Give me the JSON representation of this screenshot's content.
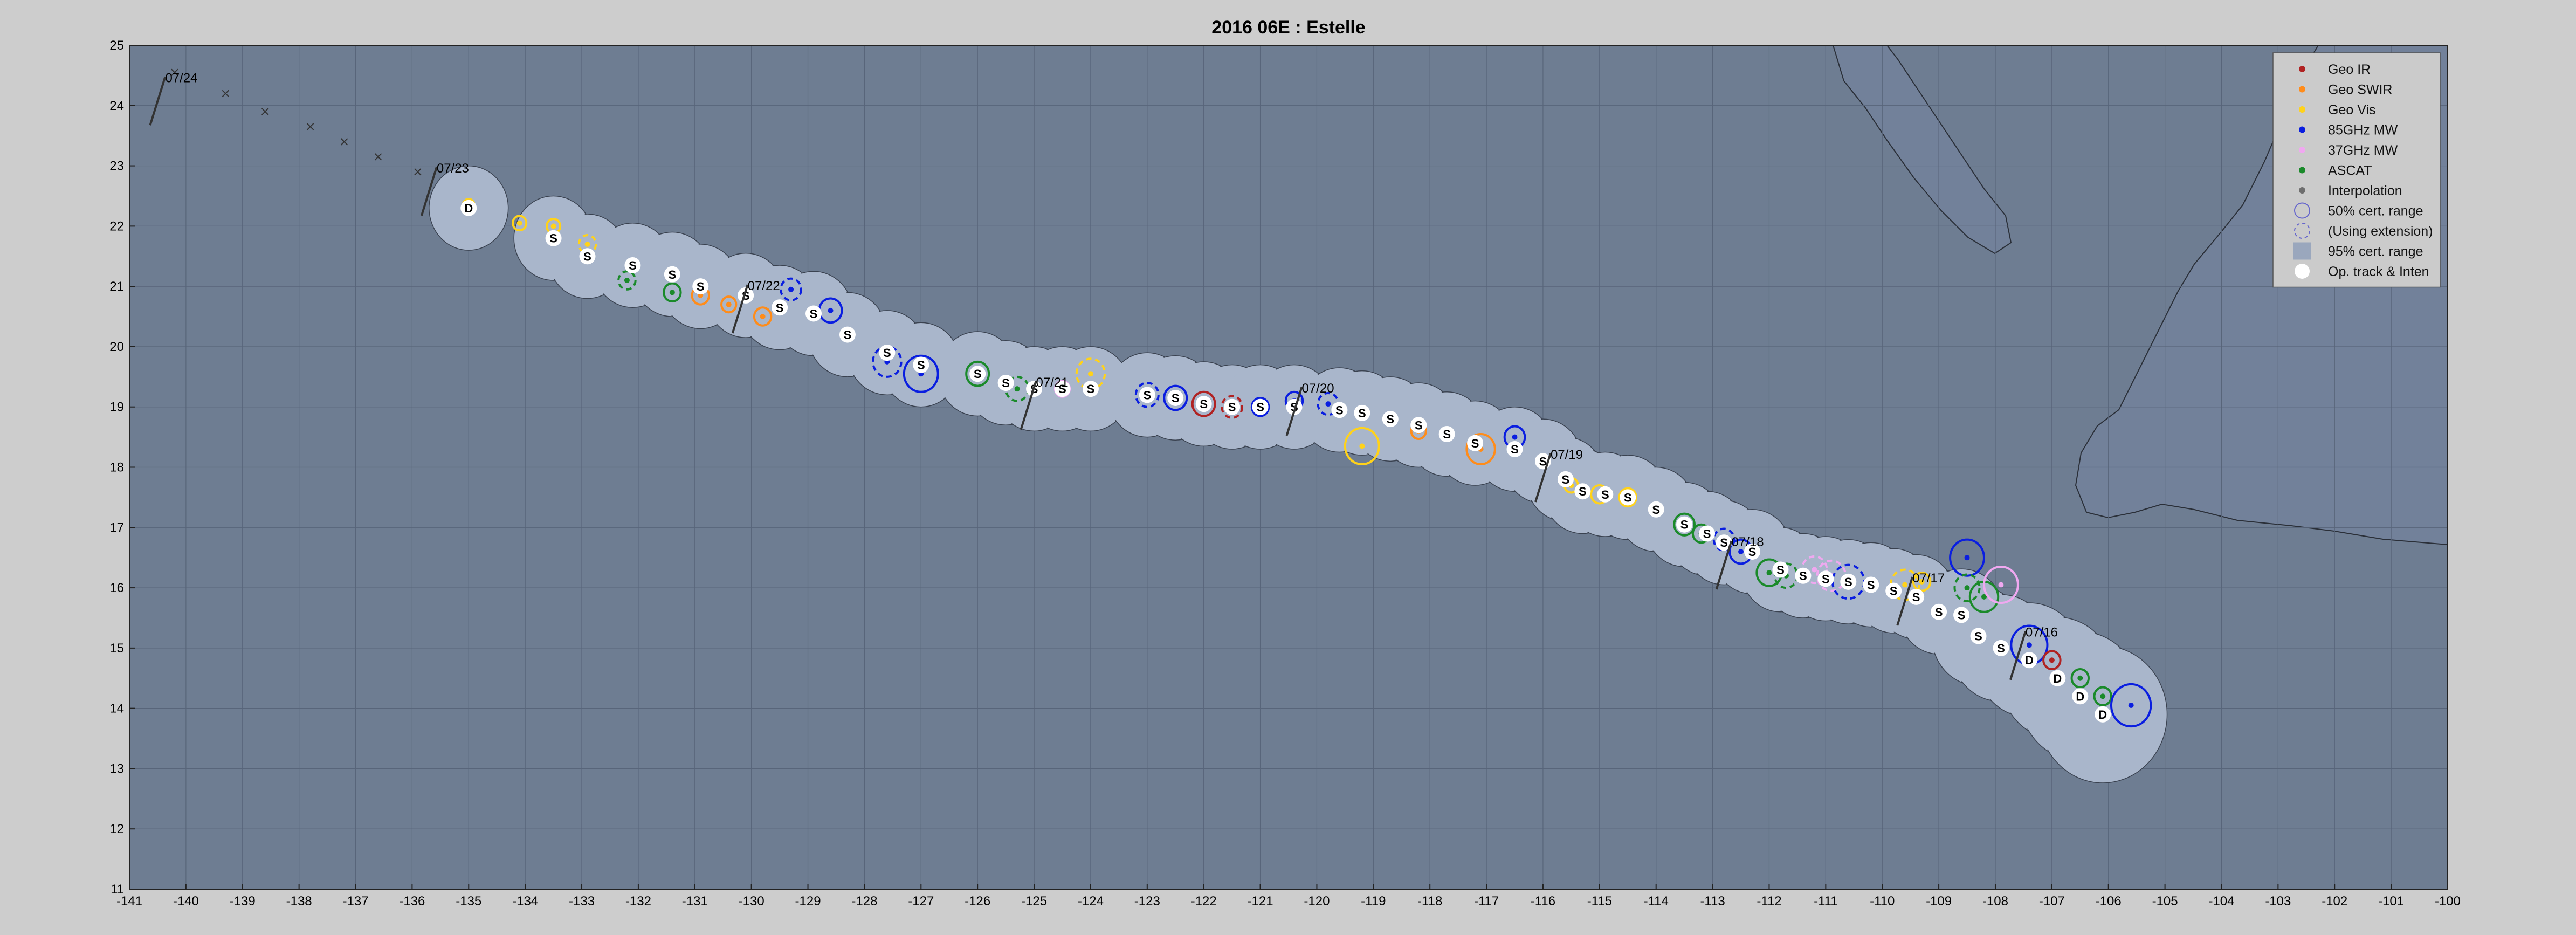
{
  "chart_data": {
    "type": "scatter",
    "title": "2016  06E :  Estelle",
    "xlim": [
      -141,
      -100
    ],
    "ylim": [
      11,
      25
    ],
    "xticks": [
      -141,
      -140,
      -139,
      -138,
      -137,
      -136,
      -135,
      -134,
      -133,
      -132,
      -131,
      -130,
      -129,
      -128,
      -127,
      -126,
      -125,
      -124,
      -123,
      -122,
      -121,
      -120,
      -119,
      -118,
      -117,
      -116,
      -115,
      -114,
      -113,
      -112,
      -111,
      -110,
      -109,
      -108,
      -107,
      -106,
      -105,
      -104,
      -103,
      -102,
      -101,
      -100
    ],
    "yticks": [
      11,
      12,
      13,
      14,
      15,
      16,
      17,
      18,
      19,
      20,
      21,
      22,
      23,
      24,
      25
    ],
    "grid": true,
    "legend_position": "top-right",
    "colors": {
      "figure_bg": "#cdcdcd",
      "ocean": "#6e7d92",
      "land": "#72819a",
      "envelope": "#a9b6cb",
      "grid": "#58657a",
      "coast": "#2a2f38",
      "geo_ir": "#b02222",
      "geo_swir": "#ff8c1a",
      "geo_vis": "#ffd21a",
      "mw85": "#0a1ee0",
      "mw37": "#f0a8f0",
      "ascat": "#1a8a2a",
      "interp": "#6e6e6e"
    },
    "legend": [
      {
        "label": "Geo IR",
        "kind": "dot",
        "color_key": "geo_ir"
      },
      {
        "label": "Geo SWIR",
        "kind": "dot",
        "color_key": "geo_swir"
      },
      {
        "label": "Geo Vis",
        "kind": "dot",
        "color_key": "geo_vis"
      },
      {
        "label": "85GHz MW",
        "kind": "dot",
        "color_key": "mw85"
      },
      {
        "label": "37GHz MW",
        "kind": "dot",
        "color_key": "mw37"
      },
      {
        "label": "ASCAT",
        "kind": "dot",
        "color_key": "ascat"
      },
      {
        "label": "Interpolation",
        "kind": "dot",
        "color_key": "interp"
      },
      {
        "label": "50% cert. range",
        "kind": "ring"
      },
      {
        "label": "(Using extension)",
        "kind": "dashed-ring"
      },
      {
        "label": "95% cert. range",
        "kind": "square"
      },
      {
        "label": "Op. track & Inten",
        "kind": "white-dot"
      }
    ],
    "date_labels": [
      {
        "text": "07/24",
        "x": -140.5,
        "y": 24.3
      },
      {
        "text": "07/23",
        "x": -135.7,
        "y": 22.8
      },
      {
        "text": "07/22",
        "x": -130.2,
        "y": 20.85
      },
      {
        "text": "07/21",
        "x": -125.1,
        "y": 19.25
      },
      {
        "text": "07/20",
        "x": -120.4,
        "y": 19.15
      },
      {
        "text": "07/19",
        "x": -116.0,
        "y": 18.05
      },
      {
        "text": "07/18",
        "x": -112.8,
        "y": 16.6
      },
      {
        "text": "07/17",
        "x": -109.6,
        "y": 16.0
      },
      {
        "text": "07/16",
        "x": -107.6,
        "y": 15.1
      }
    ],
    "op_track": [
      {
        "x": -135.0,
        "y": 22.3,
        "mark": "D"
      },
      {
        "x": -133.5,
        "y": 21.8,
        "mark": "S"
      },
      {
        "x": -132.9,
        "y": 21.5,
        "mark": "S"
      },
      {
        "x": -132.1,
        "y": 21.35,
        "mark": "S"
      },
      {
        "x": -131.4,
        "y": 21.2,
        "mark": "S"
      },
      {
        "x": -130.9,
        "y": 21.0,
        "mark": "S"
      },
      {
        "x": -130.1,
        "y": 20.85,
        "mark": "S"
      },
      {
        "x": -129.5,
        "y": 20.65,
        "mark": "S"
      },
      {
        "x": -128.9,
        "y": 20.55,
        "mark": "S"
      },
      {
        "x": -128.3,
        "y": 20.2,
        "mark": "S"
      },
      {
        "x": -127.6,
        "y": 19.9,
        "mark": "S"
      },
      {
        "x": -127.0,
        "y": 19.7,
        "mark": "S"
      },
      {
        "x": -126.0,
        "y": 19.55,
        "mark": "S"
      },
      {
        "x": -125.5,
        "y": 19.4,
        "mark": "S"
      },
      {
        "x": -125.0,
        "y": 19.3,
        "mark": "S"
      },
      {
        "x": -124.5,
        "y": 19.3,
        "mark": "S"
      },
      {
        "x": -124.0,
        "y": 19.3,
        "mark": "S"
      },
      {
        "x": -123.0,
        "y": 19.2,
        "mark": "S"
      },
      {
        "x": -122.5,
        "y": 19.15,
        "mark": "S"
      },
      {
        "x": -122.0,
        "y": 19.05,
        "mark": "S"
      },
      {
        "x": -121.5,
        "y": 19.0,
        "mark": "S"
      },
      {
        "x": -121.0,
        "y": 19.0,
        "mark": "S"
      },
      {
        "x": -120.4,
        "y": 19.0,
        "mark": "S"
      },
      {
        "x": -119.6,
        "y": 18.95,
        "mark": "S"
      },
      {
        "x": -119.2,
        "y": 18.9,
        "mark": "S"
      },
      {
        "x": -118.7,
        "y": 18.8,
        "mark": "S"
      },
      {
        "x": -118.2,
        "y": 18.7,
        "mark": "S"
      },
      {
        "x": -117.7,
        "y": 18.55,
        "mark": "S"
      },
      {
        "x": -117.2,
        "y": 18.4,
        "mark": "S"
      },
      {
        "x": -116.5,
        "y": 18.3,
        "mark": "S"
      },
      {
        "x": -116.0,
        "y": 18.1,
        "mark": "S"
      },
      {
        "x": -115.6,
        "y": 17.8,
        "mark": "S"
      },
      {
        "x": -115.3,
        "y": 17.6,
        "mark": "S"
      },
      {
        "x": -114.9,
        "y": 17.55,
        "mark": "S"
      },
      {
        "x": -114.5,
        "y": 17.5,
        "mark": "S"
      },
      {
        "x": -114.0,
        "y": 17.3,
        "mark": "S"
      },
      {
        "x": -113.5,
        "y": 17.05,
        "mark": "S"
      },
      {
        "x": -113.1,
        "y": 16.9,
        "mark": "S"
      },
      {
        "x": -112.8,
        "y": 16.75,
        "mark": "S"
      },
      {
        "x": -112.3,
        "y": 16.6,
        "mark": "S"
      },
      {
        "x": -111.8,
        "y": 16.3,
        "mark": "S"
      },
      {
        "x": -111.4,
        "y": 16.2,
        "mark": "S"
      },
      {
        "x": -111.0,
        "y": 16.15,
        "mark": "S"
      },
      {
        "x": -110.6,
        "y": 16.1,
        "mark": "S"
      },
      {
        "x": -110.2,
        "y": 16.05,
        "mark": "S"
      },
      {
        "x": -109.8,
        "y": 15.95,
        "mark": "S"
      },
      {
        "x": -109.4,
        "y": 15.85,
        "mark": "S"
      },
      {
        "x": -109.0,
        "y": 15.6,
        "mark": "S"
      },
      {
        "x": -108.6,
        "y": 15.55,
        "mark": "S"
      },
      {
        "x": -108.3,
        "y": 15.2,
        "mark": "S"
      },
      {
        "x": -107.9,
        "y": 15.0,
        "mark": "S"
      },
      {
        "x": -107.4,
        "y": 14.8,
        "mark": "D"
      },
      {
        "x": -106.9,
        "y": 14.5,
        "mark": "D"
      },
      {
        "x": -106.5,
        "y": 14.2,
        "mark": "D"
      },
      {
        "x": -106.1,
        "y": 13.9,
        "mark": "D"
      }
    ],
    "interp_track": [
      {
        "x": -140.2,
        "y": 24.55
      },
      {
        "x": -139.3,
        "y": 24.2
      },
      {
        "x": -138.6,
        "y": 23.9
      },
      {
        "x": -137.8,
        "y": 23.65
      },
      {
        "x": -137.2,
        "y": 23.4
      },
      {
        "x": -136.6,
        "y": 23.15
      },
      {
        "x": -135.9,
        "y": 22.9
      }
    ],
    "fixes": [
      {
        "x": -135.0,
        "y": 22.35,
        "type": "geo_vis",
        "r": 0.1
      },
      {
        "x": -134.1,
        "y": 22.05,
        "type": "geo_vis",
        "r": 0.12
      },
      {
        "x": -133.5,
        "y": 22.0,
        "type": "geo_vis",
        "r": 0.12
      },
      {
        "x": -132.9,
        "y": 21.7,
        "type": "geo_vis",
        "r": 0.15,
        "dashed": true
      },
      {
        "x": -132.2,
        "y": 21.1,
        "type": "ascat",
        "r": 0.15,
        "dashed": true
      },
      {
        "x": -131.4,
        "y": 20.9,
        "type": "ascat",
        "r": 0.15
      },
      {
        "x": -130.9,
        "y": 20.85,
        "type": "geo_swir",
        "r": 0.15
      },
      {
        "x": -130.4,
        "y": 20.7,
        "type": "geo_swir",
        "r": 0.13
      },
      {
        "x": -129.8,
        "y": 20.5,
        "type": "geo_swir",
        "r": 0.15
      },
      {
        "x": -129.3,
        "y": 20.95,
        "type": "mw85",
        "r": 0.18,
        "dashed": true
      },
      {
        "x": -128.6,
        "y": 20.6,
        "type": "mw85",
        "r": 0.2
      },
      {
        "x": -127.6,
        "y": 19.75,
        "type": "mw85",
        "r": 0.25,
        "dashed": true
      },
      {
        "x": -127.0,
        "y": 19.55,
        "type": "mw85",
        "r": 0.3
      },
      {
        "x": -126.0,
        "y": 19.55,
        "type": "ascat",
        "r": 0.2
      },
      {
        "x": -125.3,
        "y": 19.3,
        "type": "ascat",
        "r": 0.2,
        "dashed": true
      },
      {
        "x": -124.5,
        "y": 19.3,
        "type": "mw37",
        "r": 0.13
      },
      {
        "x": -124.0,
        "y": 19.55,
        "type": "geo_vis",
        "r": 0.25,
        "dashed": true
      },
      {
        "x": -123.0,
        "y": 19.2,
        "type": "mw85",
        "r": 0.2,
        "dashed": true
      },
      {
        "x": -122.5,
        "y": 19.15,
        "type": "mw85",
        "r": 0.2
      },
      {
        "x": -122.0,
        "y": 19.05,
        "type": "geo_ir",
        "r": 0.2
      },
      {
        "x": -121.5,
        "y": 19.0,
        "type": "geo_ir",
        "r": 0.18,
        "dashed": true
      },
      {
        "x": -121.0,
        "y": 19.0,
        "type": "mw85",
        "r": 0.15
      },
      {
        "x": -120.4,
        "y": 19.1,
        "type": "mw85",
        "r": 0.15
      },
      {
        "x": -119.8,
        "y": 19.05,
        "type": "mw85",
        "r": 0.18,
        "dashed": true
      },
      {
        "x": -119.2,
        "y": 18.35,
        "type": "geo_vis",
        "r": 0.3
      },
      {
        "x": -118.2,
        "y": 18.6,
        "type": "geo_swir",
        "r": 0.13
      },
      {
        "x": -117.1,
        "y": 18.3,
        "type": "geo_swir",
        "r": 0.25
      },
      {
        "x": -116.5,
        "y": 18.5,
        "type": "mw85",
        "r": 0.18
      },
      {
        "x": -115.5,
        "y": 17.7,
        "type": "geo_vis",
        "r": 0.12
      },
      {
        "x": -115.0,
        "y": 17.55,
        "type": "geo_vis",
        "r": 0.15
      },
      {
        "x": -114.5,
        "y": 17.5,
        "type": "geo_vis",
        "r": 0.15
      },
      {
        "x": -113.5,
        "y": 17.05,
        "type": "ascat",
        "r": 0.18
      },
      {
        "x": -113.2,
        "y": 16.9,
        "type": "ascat",
        "r": 0.15
      },
      {
        "x": -112.8,
        "y": 16.8,
        "type": "mw85",
        "r": 0.18,
        "dashed": true
      },
      {
        "x": -112.5,
        "y": 16.6,
        "type": "mw85",
        "r": 0.2
      },
      {
        "x": -112.0,
        "y": 16.25,
        "type": "ascat",
        "r": 0.22
      },
      {
        "x": -111.7,
        "y": 16.2,
        "type": "ascat",
        "r": 0.2,
        "dashed": true
      },
      {
        "x": -111.2,
        "y": 16.3,
        "type": "mw37",
        "r": 0.22,
        "dashed": true
      },
      {
        "x": -110.9,
        "y": 16.2,
        "type": "mw37",
        "r": 0.25,
        "dashed": true
      },
      {
        "x": -110.6,
        "y": 16.1,
        "type": "mw85",
        "r": 0.28,
        "dashed": true
      },
      {
        "x": -109.6,
        "y": 16.05,
        "type": "geo_vis",
        "r": 0.25,
        "dashed": true
      },
      {
        "x": -109.3,
        "y": 16.1,
        "type": "geo_vis",
        "r": 0.15
      },
      {
        "x": -108.5,
        "y": 16.5,
        "type": "mw85",
        "r": 0.3
      },
      {
        "x": -108.5,
        "y": 16.0,
        "type": "ascat",
        "r": 0.22,
        "dashed": true
      },
      {
        "x": -108.2,
        "y": 15.85,
        "type": "ascat",
        "r": 0.25
      },
      {
        "x": -107.9,
        "y": 16.05,
        "type": "mw37",
        "r": 0.3
      },
      {
        "x": -107.4,
        "y": 15.05,
        "type": "mw85",
        "r": 0.32
      },
      {
        "x": -107.0,
        "y": 14.8,
        "type": "geo_ir",
        "r": 0.15
      },
      {
        "x": -106.5,
        "y": 14.5,
        "type": "ascat",
        "r": 0.15
      },
      {
        "x": -106.1,
        "y": 14.2,
        "type": "ascat",
        "r": 0.15
      },
      {
        "x": -105.6,
        "y": 14.05,
        "type": "mw85",
        "r": 0.35
      }
    ],
    "envelope_radius": 0.7,
    "envelope_radius_end": 1.2
  }
}
